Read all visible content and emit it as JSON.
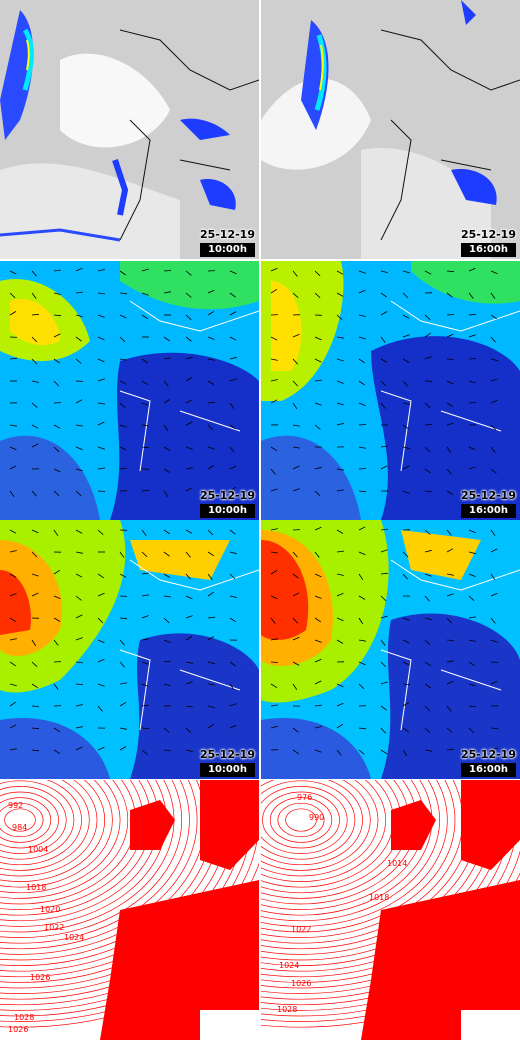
{
  "rows": [
    {
      "kind": "satellite",
      "name": "satellite-row"
    },
    {
      "kind": "wind_low",
      "name": "wind-lower-level-row"
    },
    {
      "kind": "wind_high",
      "name": "wind-upper-level-row"
    },
    {
      "kind": "pressure",
      "name": "surface-pressure-row"
    }
  ],
  "timestamps": {
    "left": {
      "date": "25-12-19",
      "time": "10:00h"
    },
    "right": {
      "date": "25-12-19",
      "time": "16:00h"
    }
  },
  "pressure_labels": {
    "left": [
      "992",
      "984",
      "1004",
      "1018",
      "1020",
      "1022",
      "1024",
      "1026",
      "1028",
      "1026"
    ],
    "right": [
      "976",
      "990",
      "1014",
      "1018",
      "1022",
      "1024",
      "1026",
      "1028"
    ]
  },
  "colors": {
    "sat_cloud": "#c8c8c8",
    "sat_clear": "#ffffff",
    "precip_low": "#1f3fff",
    "precip_mid": "#00e0ff",
    "precip_high": "#ffff00",
    "wind_calm": "#0a2aa8",
    "wind_mid": "#00c8ff",
    "wind_fast": "#ffd800",
    "wind_max": "#ff2000",
    "pressure_line": "#ff0000",
    "land_pressure": "#ff0000"
  }
}
